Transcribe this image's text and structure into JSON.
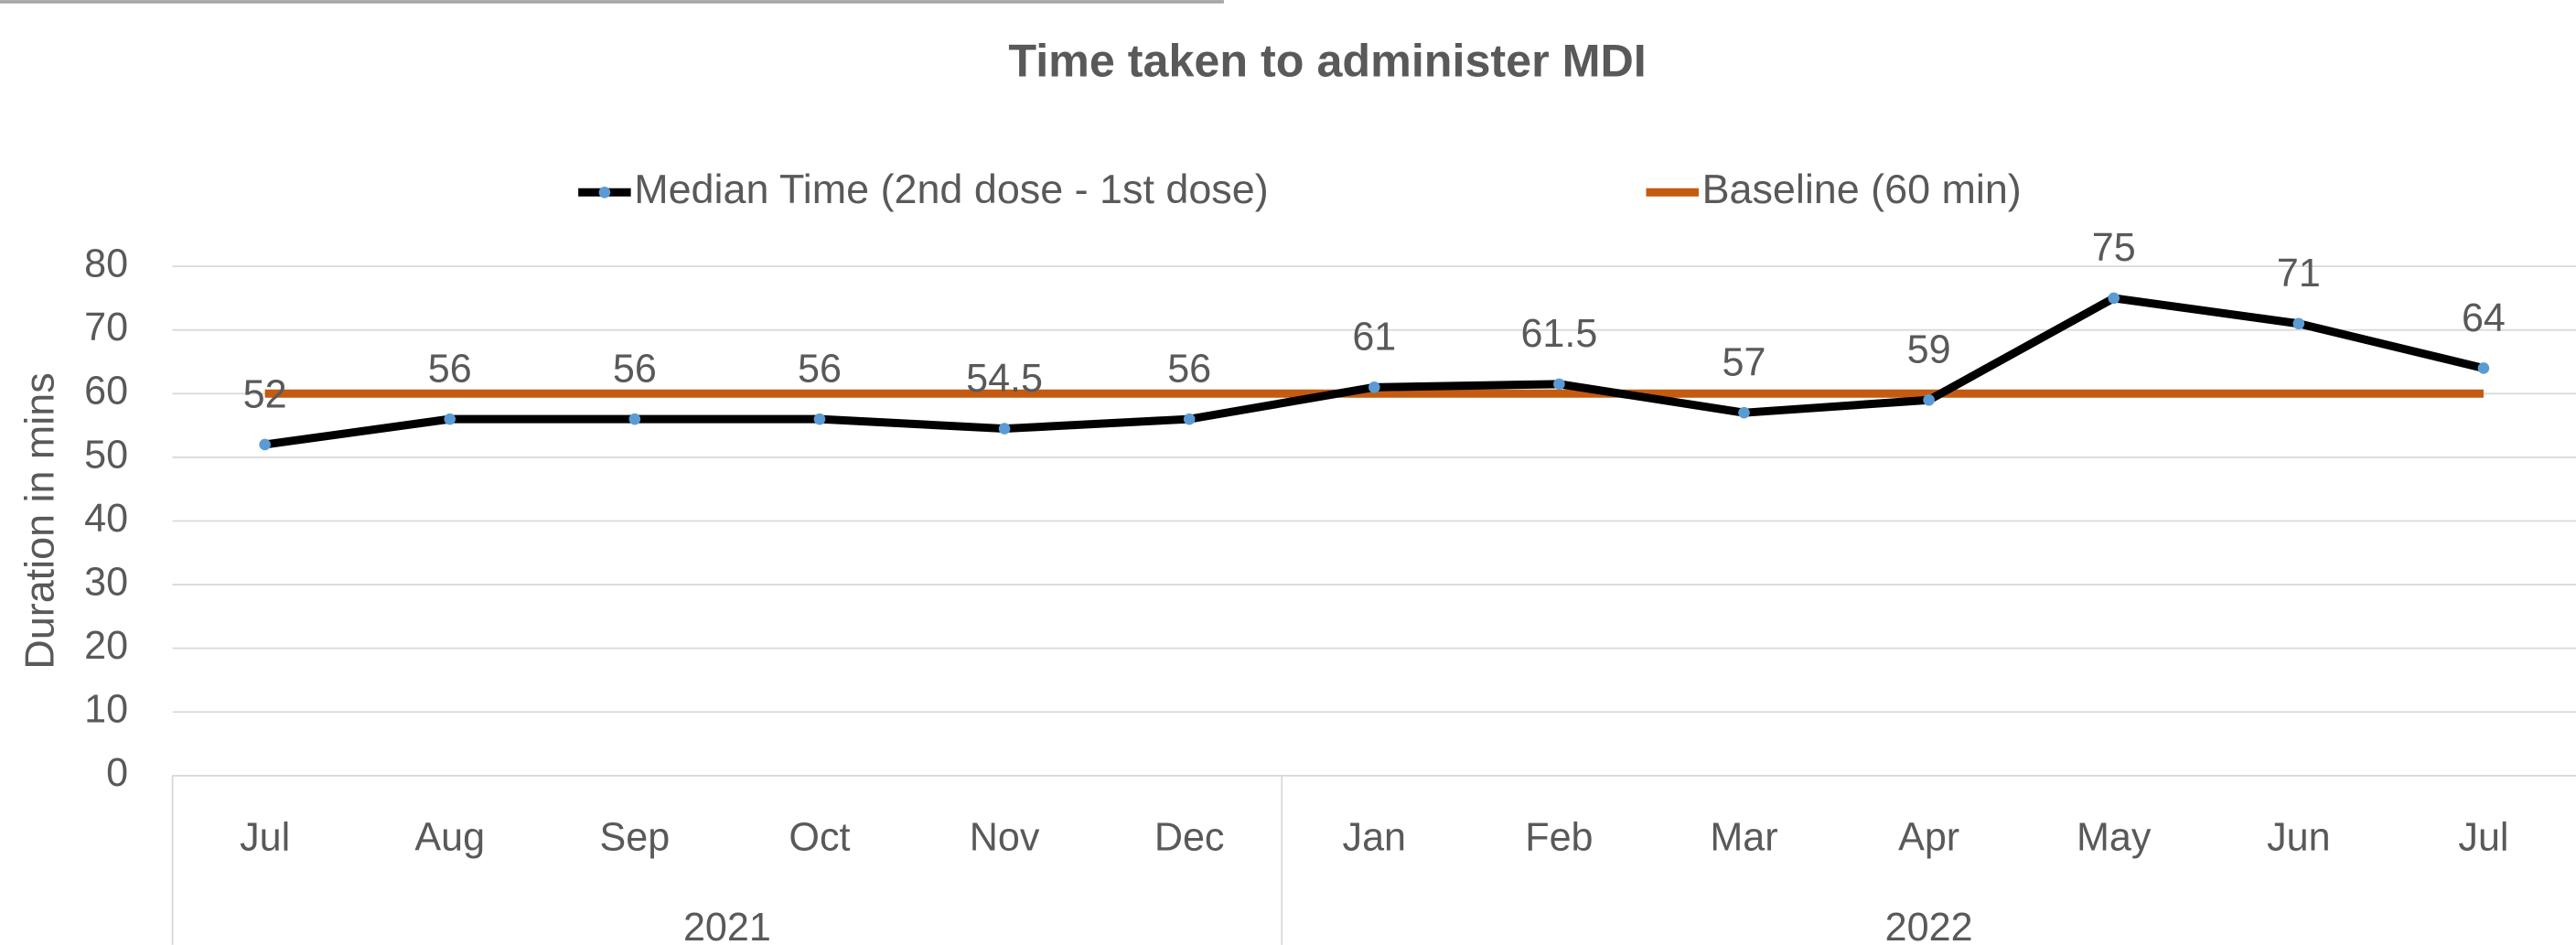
{
  "chart_data": {
    "type": "line",
    "title": "Time taken to administer MDI",
    "y_label": "Duration in mins",
    "categories": [
      "Jul",
      "Aug",
      "Sep",
      "Oct",
      "Nov",
      "Dec",
      "Jan",
      "Feb",
      "Mar",
      "Apr",
      "May",
      "Jun",
      "Jul"
    ],
    "x_groups": [
      {
        "label": "2021",
        "count": 6
      },
      {
        "label": "2022",
        "count": 7
      }
    ],
    "series": [
      {
        "name": "Median Time (2nd dose - 1st dose)",
        "color": "#000000",
        "marker_color": "#5b9bd5",
        "values": [
          52,
          56,
          56,
          56,
          54.5,
          56,
          61,
          61.5,
          57,
          59,
          75,
          71,
          64
        ],
        "data_labels": true
      },
      {
        "name": "Baseline (60 min)",
        "color": "#c55a11",
        "values": [
          60,
          60,
          60,
          60,
          60,
          60,
          60,
          60,
          60,
          60,
          60,
          60,
          60
        ]
      }
    ],
    "ylim": [
      0,
      80
    ],
    "yticks": [
      0,
      10,
      20,
      30,
      40,
      50,
      60,
      70,
      80
    ],
    "grid": true,
    "legend": "top"
  }
}
